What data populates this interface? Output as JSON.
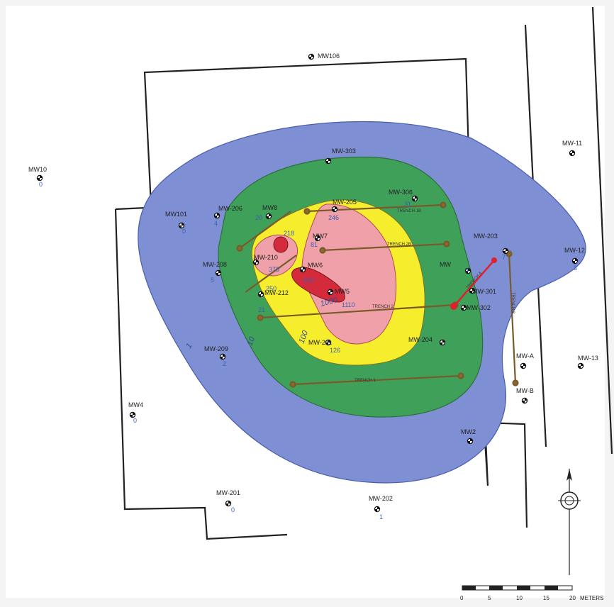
{
  "wells": [
    {
      "id": "mw106",
      "label": "MW106",
      "value": ""
    },
    {
      "id": "mw303",
      "label": "MW-303",
      "value": ""
    },
    {
      "id": "mw11",
      "label": "MW-11",
      "value": ""
    },
    {
      "id": "mw10",
      "label": "MW10",
      "value": "0"
    },
    {
      "id": "mw101",
      "label": "MW101",
      "value": "0"
    },
    {
      "id": "mw206",
      "label": "MW-206",
      "value": "4"
    },
    {
      "id": "mw8",
      "label": "MW8",
      "value": "20"
    },
    {
      "id": "mw205",
      "label": "MW-205",
      "value": "246"
    },
    {
      "id": "mw306",
      "label": "MW-306",
      "value": "31"
    },
    {
      "id": "mw203",
      "label": "MW-203",
      "value": "7"
    },
    {
      "id": "mw12",
      "label": "MW-12",
      "value": "3"
    },
    {
      "id": "mw208",
      "label": "MW-208",
      "value": "5"
    },
    {
      "id": "mw210",
      "label": "MW-210",
      "value": ""
    },
    {
      "id": "mw7",
      "label": "MW7",
      "value": "81"
    },
    {
      "id": "mw6",
      "label": "MW6",
      "value": ""
    },
    {
      "id": "mw5",
      "label": "MW5",
      "value": "1110"
    },
    {
      "id": "mw",
      "label": "MW",
      "value": "3"
    },
    {
      "id": "mw301",
      "label": "MW-301",
      "value": ""
    },
    {
      "id": "mw302",
      "label": "MW-302",
      "value": ""
    },
    {
      "id": "mw212",
      "label": "MW-212",
      "value": "21"
    },
    {
      "id": "mw209",
      "label": "MW-209",
      "value": "2"
    },
    {
      "id": "mw211",
      "label": "MW-211",
      "value": "126"
    },
    {
      "id": "mw204",
      "label": "MW-204",
      "value": ""
    },
    {
      "id": "mw13",
      "label": "MW-13",
      "value": ""
    },
    {
      "id": "mwa",
      "label": "MW-A",
      "value": ""
    },
    {
      "id": "mwb",
      "label": "MW-B",
      "value": ""
    },
    {
      "id": "mw4",
      "label": "MW4",
      "value": "0"
    },
    {
      "id": "mw2",
      "label": "MW2",
      "value": ""
    },
    {
      "id": "mw201",
      "label": "MW-201",
      "value": "0"
    },
    {
      "id": "mw202",
      "label": "MW-202",
      "value": "1"
    }
  ],
  "sample_values": {
    "v1": "218",
    "v2": "375",
    "v3": "250",
    "v4": "610"
  },
  "trenches": {
    "t1": "TRENCH 1",
    "t2": "TRENCH 2",
    "t2b": "TRENCH 2B",
    "t1b": "TRENCH 1B",
    "t3": "TRENCH 3",
    "t4": "TRENCH 4"
  },
  "contour_labels": {
    "c10": "10",
    "c1": "1",
    "c100": "100",
    "c1000": "1000"
  },
  "scale": {
    "ticks": [
      "0",
      "5",
      "10",
      "15",
      "20"
    ],
    "unit": "METERS"
  },
  "colors": {
    "c1": "#7f8fd4",
    "c10": "#3fa05a",
    "c100": "#f6ee2c",
    "c1000": "#f0a0a8",
    "hot": "#d32b3b",
    "trench": "#7a5a2a",
    "trench_end": "#8a6a30",
    "boundary": "#222222",
    "red_line": "#e0202a"
  }
}
